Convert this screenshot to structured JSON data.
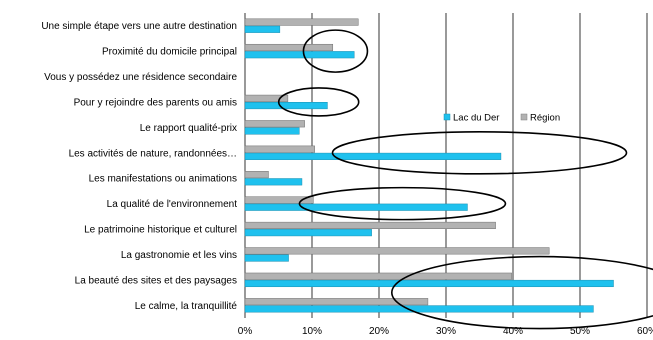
{
  "chart_data": {
    "type": "bar",
    "orientation": "horizontal",
    "categories": [
      "Une simple étape vers une autre destination",
      "Proximité du domicile principal",
      "Vous y possédez une résidence secondaire",
      "Pour y rejoindre des parents ou amis",
      "Le rapport qualité-prix",
      "Les activités de nature, randonnées…",
      "Les manifestations ou animations",
      "La qualité de l'environnement",
      "Le patrimoine historique et culturel",
      "La gastronomie et les vins",
      "La beauté des sites et des paysages",
      "Le calme, la tranquillité"
    ],
    "series": [
      {
        "name": "Région",
        "color": "#b2b2b2",
        "values": [
          16.9,
          13.1,
          0,
          6.4,
          8.9,
          10.4,
          3.5,
          10.2,
          37.4,
          45.4,
          39.8,
          27.3
        ]
      },
      {
        "name": "Lac du Der",
        "color": "#1fc1ee",
        "values": [
          5.2,
          16.3,
          0,
          12.3,
          8.1,
          38.2,
          8.5,
          33.2,
          18.9,
          6.5,
          55.0,
          52.0
        ]
      }
    ],
    "xlim": [
      0,
      60
    ],
    "x_ticks": [
      "0%",
      "10%",
      "20%",
      "30%",
      "40%",
      "50%",
      "60%"
    ],
    "grid": true,
    "legend_position": "right",
    "legend": [
      "Lac du Der",
      "Région"
    ],
    "highlight_ellipses": [
      "Proximité du domicile principal",
      "Pour y rejoindre des parents ou amis",
      "Les activités de nature, randonnées…",
      "La qualité de l'environnement",
      "La beauté des sites et des paysages",
      "Le calme, la tranquillité"
    ],
    "title": "",
    "xlabel": "",
    "ylabel": ""
  }
}
